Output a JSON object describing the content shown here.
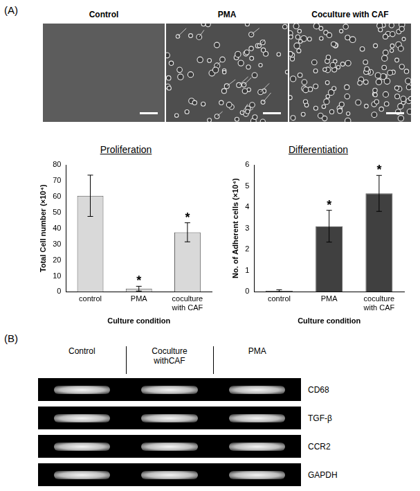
{
  "panels": [
    "(A)",
    "(B)"
  ],
  "micrographs": {
    "labels": [
      "Control",
      "PMA",
      "Coculture with CAF"
    ]
  },
  "chart_data": [
    {
      "type": "bar",
      "title": "Proliferation",
      "categories": [
        "control",
        "PMA",
        "coculture with CAF"
      ],
      "values": [
        60.5,
        2,
        37.5
      ],
      "errors": [
        13,
        1.5,
        6
      ],
      "significance": [
        null,
        "*",
        "*"
      ],
      "color": "#d9d9d9",
      "x_label": "Culture condition",
      "y_label": "Total Cell number (×10⁴)",
      "ylim": [
        0,
        80
      ],
      "yticks": [
        0,
        10,
        20,
        30,
        40,
        50,
        60,
        70,
        80
      ],
      "grid": false
    },
    {
      "type": "bar",
      "title": "Differentiation",
      "categories": [
        "control",
        "PMA",
        "coculture with CAF"
      ],
      "values": [
        0.05,
        3.1,
        4.65
      ],
      "errors": [
        0.05,
        0.75,
        0.85
      ],
      "significance": [
        null,
        "*",
        "*"
      ],
      "color": "#404040",
      "x_label": "Culture condition",
      "y_label": "No. of Adherent cells (×10⁴)",
      "ylim": [
        0,
        6
      ],
      "yticks": [
        0,
        1,
        2,
        3,
        4,
        5,
        6
      ],
      "grid": false
    }
  ],
  "gel": {
    "columns": [
      "Control",
      "Coculture withCAF",
      "PMA"
    ],
    "rows": [
      "CD68",
      "TGF-β",
      "CCR2",
      "GAPDH"
    ]
  }
}
